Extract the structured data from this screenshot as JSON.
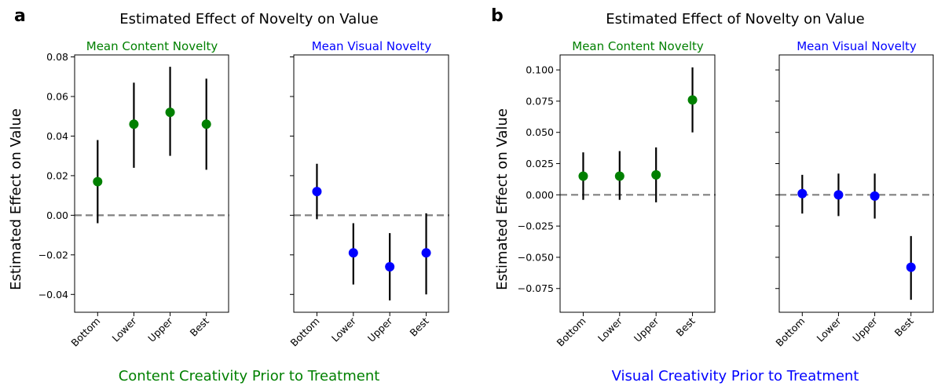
{
  "colors": {
    "content": "#008000",
    "visual": "#0000ff",
    "errorbar": "#000000",
    "zero_line": "#808080"
  },
  "panels": [
    {
      "letter": "a",
      "title": "Estimated Effect of Novelty on Value",
      "ylabel": "Estimated Effect on Value",
      "xlabel": "Content Creativity Prior to Treatment",
      "xlabel_color": "#008000"
    },
    {
      "letter": "b",
      "title": "Estimated Effect of Novelty on Value",
      "ylabel": "Estimated Effect on Value",
      "xlabel": "Visual Creativity Prior to Treatment",
      "xlabel_color": "#0000ff"
    }
  ],
  "chart_data": [
    {
      "type": "scatter",
      "panel": "a",
      "subtitle": "Mean Content Novelty",
      "subtitle_color": "#008000",
      "categories": [
        "Bottom",
        "Lower",
        "Upper",
        "Best"
      ],
      "values": [
        0.017,
        0.046,
        0.052,
        0.046
      ],
      "ci_low": [
        -0.004,
        0.024,
        0.03,
        0.023
      ],
      "ci_high": [
        0.038,
        0.067,
        0.075,
        0.069
      ],
      "ylim": [
        -0.049,
        0.081
      ],
      "yticks": [
        -0.04,
        -0.02,
        0.0,
        0.02,
        0.04,
        0.06,
        0.08
      ],
      "ytick_labels": [
        "−0.04",
        "−0.02",
        "0.00",
        "0.02",
        "0.04",
        "0.06",
        "0.08"
      ],
      "color": "#008000",
      "zero_line": true
    },
    {
      "type": "scatter",
      "panel": "a",
      "subtitle": "Mean Visual Novelty",
      "subtitle_color": "#0000ff",
      "categories": [
        "Bottom",
        "Lower",
        "Upper",
        "Best"
      ],
      "values": [
        0.012,
        -0.019,
        -0.026,
        -0.019
      ],
      "ci_low": [
        -0.002,
        -0.035,
        -0.043,
        -0.04
      ],
      "ci_high": [
        0.026,
        -0.004,
        -0.009,
        0.001
      ],
      "ylim": [
        -0.049,
        0.081
      ],
      "yticks": [
        -0.04,
        -0.02,
        0.0,
        0.02,
        0.04,
        0.06,
        0.08
      ],
      "ytick_labels": [
        "",
        "",
        "",
        "",
        "",
        "",
        ""
      ],
      "color": "#0000ff",
      "zero_line": true
    },
    {
      "type": "scatter",
      "panel": "b",
      "subtitle": "Mean Content Novelty",
      "subtitle_color": "#008000",
      "categories": [
        "Bottom",
        "Lower",
        "Upper",
        "Best"
      ],
      "values": [
        0.015,
        0.015,
        0.016,
        0.076
      ],
      "ci_low": [
        -0.004,
        -0.004,
        -0.006,
        0.05
      ],
      "ci_high": [
        0.034,
        0.035,
        0.038,
        0.102
      ],
      "ylim": [
        -0.094,
        0.112
      ],
      "yticks": [
        -0.075,
        -0.05,
        -0.025,
        0.0,
        0.025,
        0.05,
        0.075,
        0.1
      ],
      "ytick_labels": [
        "−0.075",
        "−0.050",
        "−0.025",
        "0.000",
        "0.025",
        "0.050",
        "0.075",
        "0.100"
      ],
      "color": "#008000",
      "zero_line": true
    },
    {
      "type": "scatter",
      "panel": "b",
      "subtitle": "Mean Visual Novelty",
      "subtitle_color": "#0000ff",
      "categories": [
        "Bottom",
        "Lower",
        "Upper",
        "Best"
      ],
      "values": [
        0.001,
        0.0,
        -0.001,
        -0.058
      ],
      "ci_low": [
        -0.015,
        -0.017,
        -0.019,
        -0.084
      ],
      "ci_high": [
        0.016,
        0.017,
        0.017,
        -0.033
      ],
      "ylim": [
        -0.094,
        0.112
      ],
      "yticks": [
        -0.075,
        -0.05,
        -0.025,
        0.0,
        0.025,
        0.05,
        0.075,
        0.1
      ],
      "ytick_labels": [
        "",
        "",
        "",
        "",
        "",
        "",
        "",
        ""
      ],
      "color": "#0000ff",
      "zero_line": true
    }
  ]
}
